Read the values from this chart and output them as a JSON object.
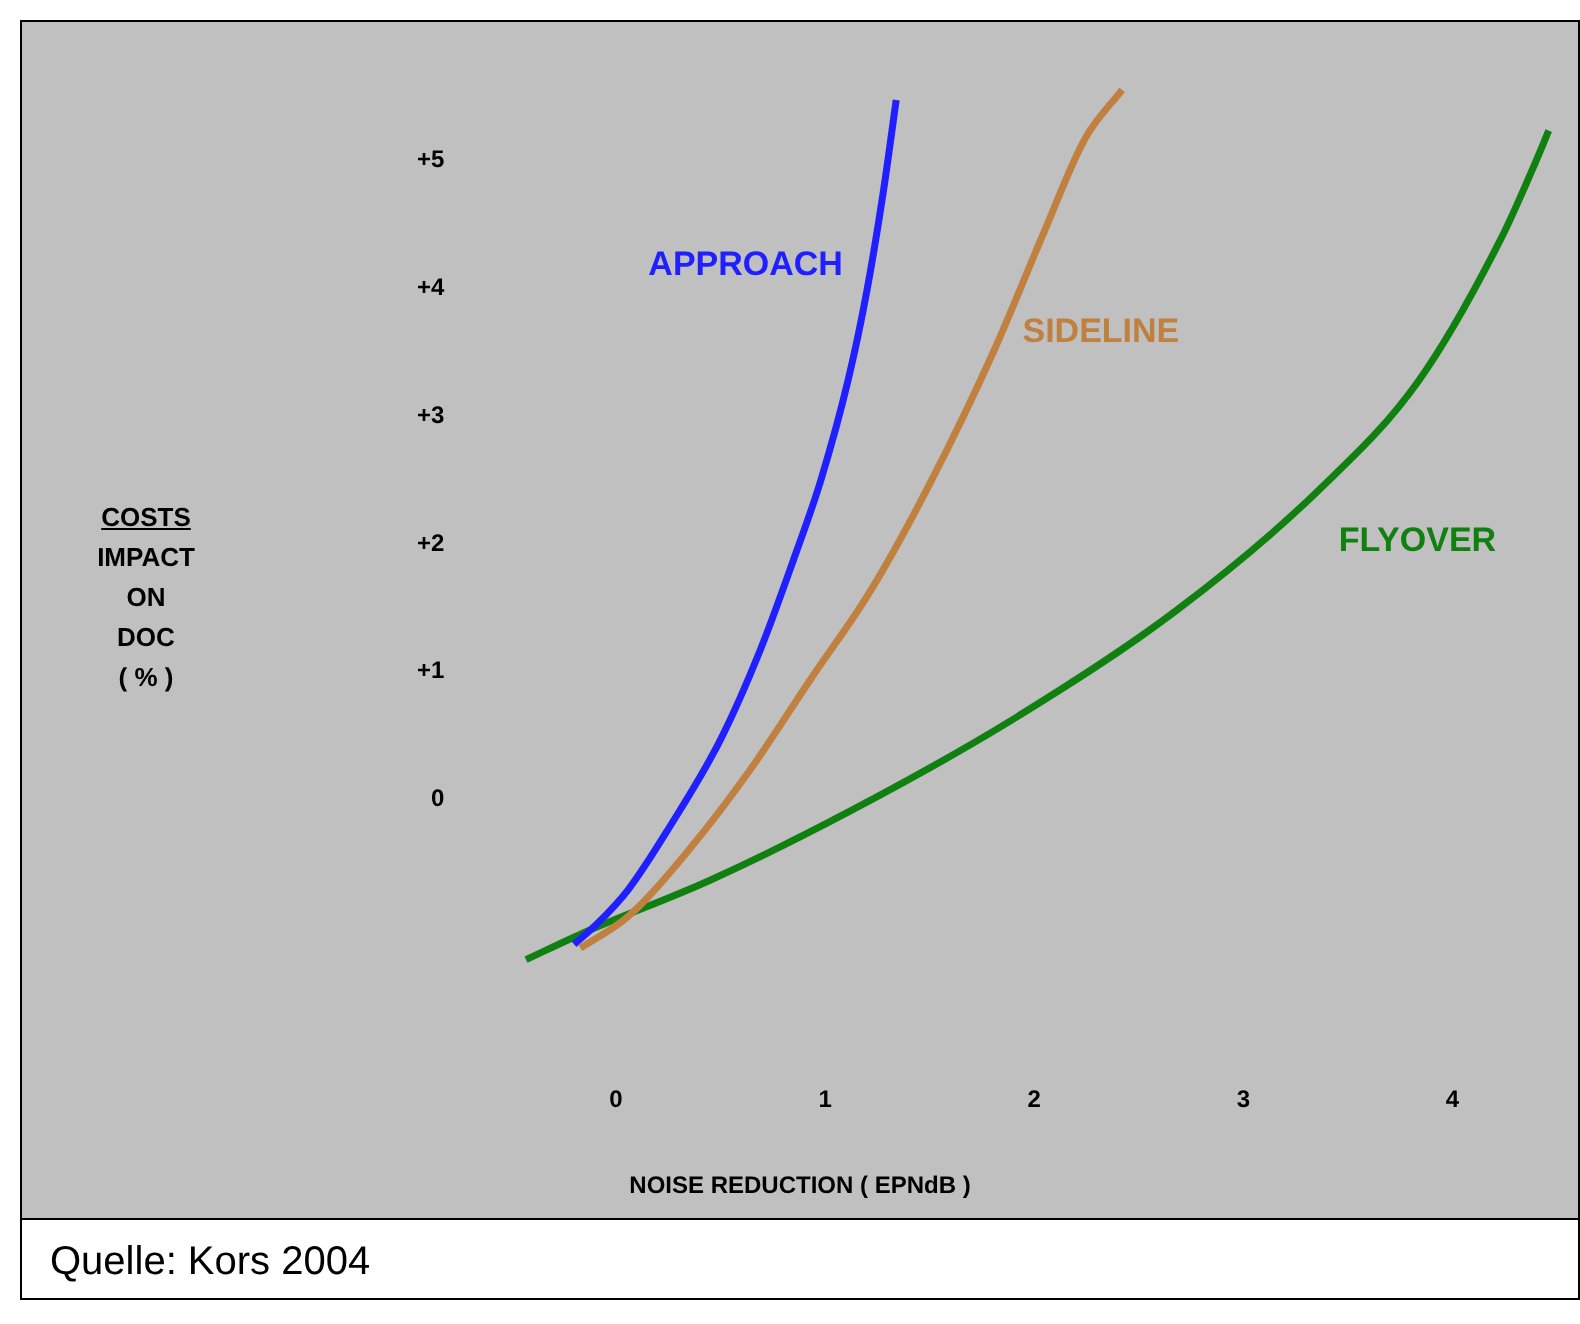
{
  "chart_data": {
    "type": "line",
    "xlabel": "NOISE REDUCTION ( EPNdB )",
    "xlim": [
      -2.84,
      4.6
    ],
    "xticks": [
      0,
      1,
      2,
      3,
      4
    ],
    "ylim": [
      -3.27,
      6.08
    ],
    "yticks": [
      {
        "value": 0,
        "label": "0"
      },
      {
        "value": 1,
        "label": "+1"
      },
      {
        "value": 2,
        "label": "+2"
      },
      {
        "value": 3,
        "label": "+3"
      },
      {
        "value": 4,
        "label": "+4"
      },
      {
        "value": 5,
        "label": "+5"
      }
    ],
    "grid": false,
    "legend": false,
    "series": [
      {
        "name": "APPROACH",
        "color": "#2020ff",
        "x": [
          -0.2,
          -0.09,
          0.06,
          0.25,
          0.5,
          0.69,
          0.85,
          0.98,
          1.11,
          1.2,
          1.28,
          1.34
        ],
        "values": [
          -1.13,
          -0.97,
          -0.7,
          -0.23,
          0.47,
          1.17,
          1.88,
          2.5,
          3.28,
          3.98,
          4.77,
          5.47
        ]
      },
      {
        "name": "SIDELINE",
        "color": "#c08040",
        "x": [
          -0.17,
          0.06,
          0.35,
          0.64,
          0.93,
          1.22,
          1.51,
          1.81,
          2.05,
          2.24,
          2.42
        ],
        "values": [
          -1.16,
          -0.91,
          -0.39,
          0.23,
          0.94,
          1.64,
          2.5,
          3.52,
          4.45,
          5.16,
          5.55
        ]
      },
      {
        "name": "FLYOVER",
        "color": "#108010",
        "x": [
          -0.43,
          -0.14,
          0.45,
          1.13,
          1.9,
          2.68,
          3.36,
          3.84,
          4.23,
          4.38,
          4.46
        ],
        "values": [
          -1.25,
          -1.03,
          -0.63,
          -0.08,
          0.63,
          1.48,
          2.42,
          3.28,
          4.38,
          4.92,
          5.23
        ]
      }
    ],
    "annotations": [
      "COSTS\nIMPACT\nON\nDOC\n( % )",
      "Quelle: Kors 2004"
    ]
  }
}
